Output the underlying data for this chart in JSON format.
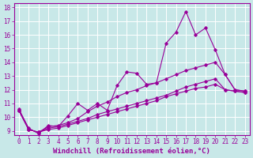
{
  "background_color": "#c8e8e8",
  "grid_color": "#ffffff",
  "line_color": "#990099",
  "xlabel": "Windchill (Refroidissement éolien,°C)",
  "xlim": [
    -0.5,
    23.5
  ],
  "ylim": [
    8.7,
    18.3
  ],
  "yticks": [
    9,
    10,
    11,
    12,
    13,
    14,
    15,
    16,
    17,
    18
  ],
  "xticks": [
    0,
    1,
    2,
    3,
    4,
    5,
    6,
    7,
    8,
    9,
    10,
    11,
    12,
    13,
    14,
    15,
    16,
    17,
    18,
    19,
    20,
    21,
    22,
    23
  ],
  "line1_x": [
    0,
    1,
    2,
    3,
    4,
    5,
    6,
    7,
    8,
    9,
    10,
    11,
    12,
    13,
    14,
    15,
    16,
    17,
    18,
    19,
    20,
    21,
    22,
    23
  ],
  "line1_y": [
    10.6,
    9.2,
    8.8,
    9.4,
    9.3,
    10.1,
    11.0,
    10.5,
    11.0,
    10.5,
    12.3,
    13.3,
    13.2,
    12.4,
    12.5,
    15.4,
    16.2,
    17.7,
    16.0,
    16.5,
    14.9,
    13.1,
    12.0,
    11.9
  ],
  "line2_x": [
    0,
    1,
    2,
    3,
    4,
    5,
    6,
    7,
    8,
    9,
    10,
    11,
    12,
    13,
    14,
    15,
    16,
    17,
    18,
    19,
    20,
    21,
    22,
    23
  ],
  "line2_y": [
    10.5,
    9.1,
    8.9,
    9.3,
    9.4,
    9.6,
    9.9,
    10.4,
    10.8,
    11.1,
    11.5,
    11.8,
    12.0,
    12.3,
    12.5,
    12.8,
    13.1,
    13.4,
    13.6,
    13.8,
    14.0,
    13.1,
    12.0,
    11.9
  ],
  "line3_x": [
    0,
    1,
    2,
    3,
    4,
    5,
    6,
    7,
    8,
    9,
    10,
    11,
    12,
    13,
    14,
    15,
    16,
    17,
    18,
    19,
    20,
    21,
    22,
    23
  ],
  "line3_y": [
    10.5,
    9.1,
    8.9,
    9.2,
    9.3,
    9.5,
    9.7,
    9.9,
    10.2,
    10.4,
    10.6,
    10.8,
    11.0,
    11.2,
    11.4,
    11.6,
    11.9,
    12.2,
    12.4,
    12.6,
    12.8,
    12.0,
    11.9,
    11.8
  ],
  "line4_x": [
    0,
    1,
    2,
    3,
    4,
    5,
    6,
    7,
    8,
    9,
    10,
    11,
    12,
    13,
    14,
    15,
    16,
    17,
    18,
    19,
    20,
    21,
    22,
    23
  ],
  "line4_y": [
    10.5,
    9.1,
    8.9,
    9.1,
    9.2,
    9.4,
    9.6,
    9.8,
    10.0,
    10.2,
    10.4,
    10.6,
    10.8,
    11.0,
    11.2,
    11.5,
    11.7,
    11.9,
    12.1,
    12.2,
    12.4,
    12.0,
    11.9,
    11.8
  ],
  "fontsize_tick": 5.5,
  "fontsize_label": 6.5
}
